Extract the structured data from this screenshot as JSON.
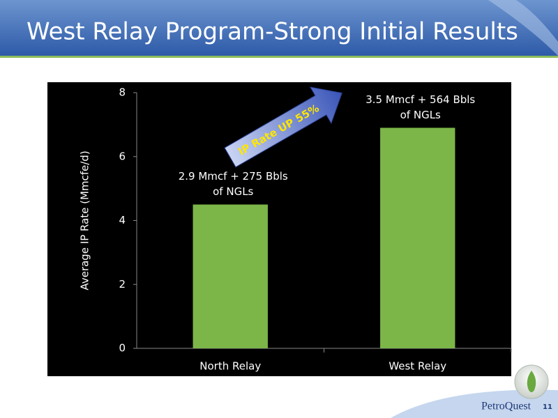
{
  "slide": {
    "title": "West Relay Program-Strong Initial Results",
    "brand": "PetroQuest",
    "page": "11"
  },
  "chart_data": {
    "type": "bar",
    "categories": [
      "North Relay",
      "West Relay"
    ],
    "values": [
      4.5,
      6.9
    ],
    "color": "#7cb548",
    "ylabel": "Average IP Rate (Mmcfe/d)",
    "ylim": [
      0,
      8
    ],
    "yticks": [
      0,
      2,
      4,
      6,
      8
    ],
    "annotations": [
      [
        "2.9 Mmcf + 275 Bbls",
        "of NGLs"
      ],
      [
        "3.5 Mmcf + 564 Bbls",
        "of NGLs"
      ]
    ],
    "callout": "IP Rate UP 55%"
  }
}
